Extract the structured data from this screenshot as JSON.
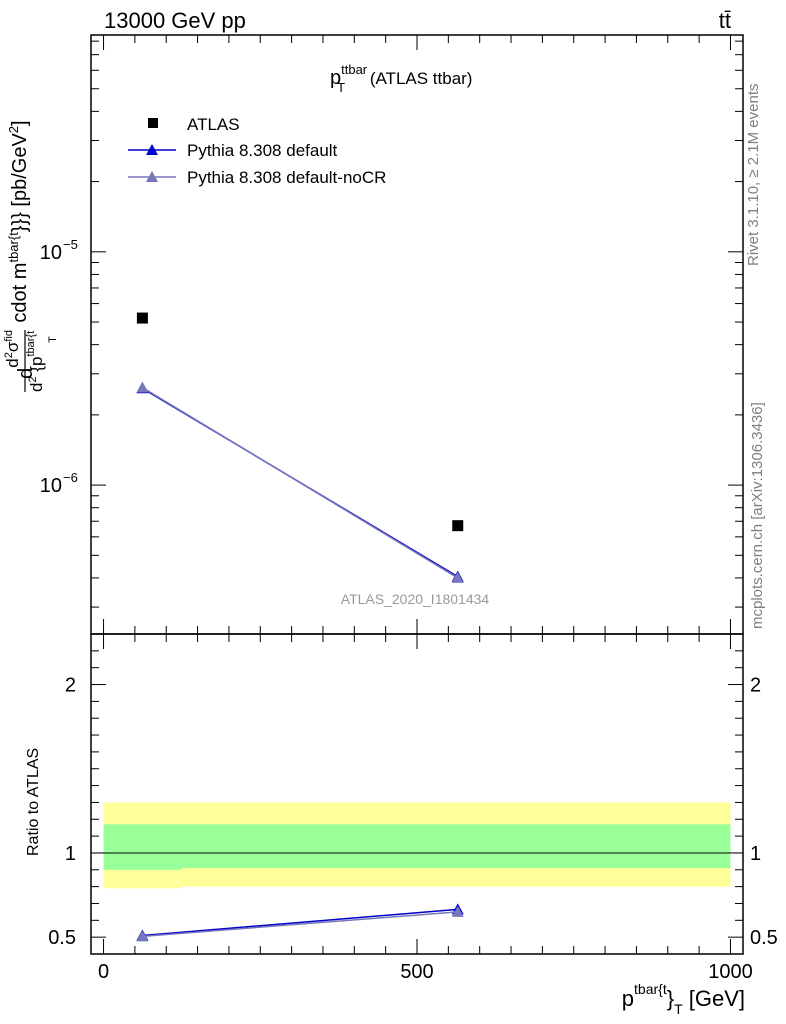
{
  "header": {
    "energy_label": "13000 GeV pp",
    "process_label": "tt̄"
  },
  "side_labels": {
    "rivet": "Rivet 3.1.10, ≥ 2.1M events",
    "mcplots": "mcplots.cern.ch [arXiv:1306.3436]"
  },
  "watermark": "ATLAS_2020_I1801434",
  "chart_data": [
    {
      "type": "scatter",
      "panel": "main",
      "title": {
        "main": "p",
        "sup": "ttbar",
        "sub": "T",
        "suffix": " (ATLAS ttbar)"
      },
      "ylabel": {
        "prefix": "d",
        "frac_num": "d",
        "frac_num_sup1": "2",
        "frac_num_sigma": "σ",
        "frac_num_sup2": "fid",
        "frac_den": "d",
        "frac_den_sup": "2",
        "frac_den_rest": " {p",
        "frac_den_rest_sup": "tbar{t",
        "frac_den_rest_sub": "T",
        "tail": " cdot m",
        "tail_sup": "tbar{t",
        "tail2": "}}} [pb/GeV",
        "tail2_sup": "2",
        "tail3": "]"
      },
      "y_scale": "log",
      "ylim": [
        2.3e-07,
        8.5e-05
      ],
      "xlim": [
        -20,
        1020
      ],
      "y_ticks": [
        {
          "value": 1e-06,
          "base": "10",
          "exp": "−6"
        },
        {
          "value": 1e-05,
          "base": "10",
          "exp": "−5"
        }
      ],
      "legend_position": "top-left",
      "series": [
        {
          "name": "ATLAS",
          "marker": "square",
          "color": "#000000",
          "line": false,
          "x": [
            62,
            565
          ],
          "y": [
            5.2e-06,
            6.7e-07
          ]
        },
        {
          "name": "Pythia 8.308 default",
          "marker": "triangle",
          "color": "#0000cc",
          "line": true,
          "x": [
            62,
            565
          ],
          "y": [
            2.6e-06,
            4.05e-07
          ]
        },
        {
          "name": "Pythia 8.308 default-noCR",
          "marker": "triangle",
          "color": "#7777bb",
          "line": true,
          "x": [
            62,
            565
          ],
          "y": [
            2.62e-06,
            4e-07
          ]
        }
      ]
    },
    {
      "type": "line",
      "panel": "ratio",
      "ylabel": "Ratio to ATLAS",
      "xlabel": {
        "main": "p",
        "sup": "tbar{t",
        "mid": "}",
        "sub": "T",
        "unit": " [GeV]"
      },
      "xlim": [
        -20,
        1020
      ],
      "ylim": [
        0.4,
        2.3
      ],
      "x_ticks": [
        0,
        500,
        1000
      ],
      "y_ticks": [
        0.5,
        1,
        2
      ],
      "bands": [
        {
          "color": "#ffff99",
          "segments": [
            {
              "x0": 0,
              "x1": 125,
              "lo": 0.79,
              "hi": 1.3
            },
            {
              "x0": 125,
              "x1": 1000,
              "lo": 0.8,
              "hi": 1.3
            }
          ]
        },
        {
          "color": "#99ff99",
          "segments": [
            {
              "x0": 0,
              "x1": 125,
              "lo": 0.9,
              "hi": 1.17
            },
            {
              "x0": 125,
              "x1": 1000,
              "lo": 0.91,
              "hi": 1.17
            }
          ]
        }
      ],
      "reference_line": 1,
      "series": [
        {
          "name": "Pythia 8.308 default",
          "color": "#0000cc",
          "x": [
            62,
            565
          ],
          "y": [
            0.51,
            0.665
          ],
          "err": [
            0.02,
            0.025
          ]
        },
        {
          "name": "Pythia 8.308 default-noCR",
          "color": "#7777bb",
          "x": [
            62,
            565
          ],
          "y": [
            0.505,
            0.65
          ],
          "err": [
            0.02,
            0.02
          ]
        }
      ]
    }
  ]
}
